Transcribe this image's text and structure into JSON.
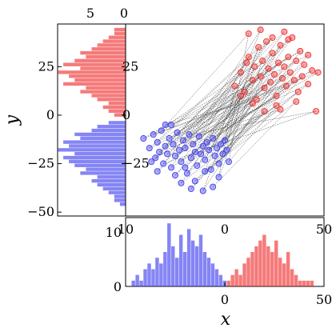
{
  "chart_data": {
    "type": "scatter",
    "xlabel": "x",
    "ylabel": "y",
    "xlim": [
      -50,
      50
    ],
    "ylim": [
      -52,
      47
    ],
    "colors": {
      "blue": "#3333ee",
      "red": "#ee2222",
      "line": "#333333"
    },
    "axes": {
      "main_yticks": [
        "25",
        "0",
        "−25"
      ],
      "main_yticks_values": [
        25,
        0,
        -25
      ],
      "main_xticks": [
        "0",
        "50"
      ],
      "main_xticks_values": [
        0,
        50
      ],
      "left_yticks": [
        "25",
        "0",
        "−25",
        "−50"
      ],
      "left_yticks_values": [
        25,
        0,
        -25,
        -50
      ],
      "left_top_ticks": [
        "5",
        "0"
      ],
      "left_top_ticks_values": [
        5,
        0
      ],
      "left_bottom_tick": "10",
      "bottom_left_tick": "10",
      "bottom_yticks": [
        "0"
      ],
      "bottom_xticks": [
        "0",
        "50"
      ],
      "bottom_xticks_values": [
        0,
        50
      ]
    },
    "series": [
      {
        "color": "blue",
        "points": [
          [
            -41,
            -12
          ],
          [
            -38,
            -17
          ],
          [
            -36,
            -10
          ],
          [
            -35,
            -22
          ],
          [
            -34,
            -14
          ],
          [
            -33,
            -19
          ],
          [
            -32,
            -8
          ],
          [
            -31,
            -25
          ],
          [
            -30,
            -16
          ],
          [
            -29,
            -20
          ],
          [
            -28,
            -12
          ],
          [
            -27,
            -27
          ],
          [
            -26,
            -15
          ],
          [
            -25,
            -21
          ],
          [
            -24,
            -9
          ],
          [
            -23,
            -18
          ],
          [
            -22,
            -24
          ],
          [
            -21,
            -13
          ],
          [
            -20,
            -17
          ],
          [
            -19,
            -30
          ],
          [
            -18,
            -10
          ],
          [
            -17,
            -22
          ],
          [
            -16,
            -15
          ],
          [
            -15,
            -19
          ],
          [
            -14,
            -26
          ],
          [
            -13,
            -11
          ],
          [
            -12,
            -20
          ],
          [
            -11,
            -16
          ],
          [
            -10,
            -23
          ],
          [
            -9,
            -14
          ],
          [
            -8,
            -18
          ],
          [
            -7,
            -28
          ],
          [
            -6,
            -12
          ],
          [
            -5,
            -21
          ],
          [
            -4,
            -17
          ],
          [
            -3,
            -25
          ],
          [
            -2,
            -15
          ],
          [
            -1,
            -20
          ],
          [
            0,
            -13
          ],
          [
            1,
            -18
          ],
          [
            2,
            -24
          ],
          [
            -37,
            -24
          ],
          [
            -30,
            -5
          ],
          [
            -25,
            -31
          ],
          [
            -20,
            -27
          ],
          [
            -15,
            -34
          ],
          [
            -10,
            -29
          ],
          [
            -6,
            -37
          ],
          [
            -3,
            -32
          ],
          [
            -11,
            -39
          ],
          [
            -22,
            -35
          ],
          [
            -17,
            -38
          ],
          [
            -27,
            -5
          ],
          [
            -34,
            -29
          ]
        ]
      },
      {
        "color": "red",
        "points": [
          [
            5,
            15
          ],
          [
            8,
            22
          ],
          [
            10,
            12
          ],
          [
            12,
            30
          ],
          [
            14,
            18
          ],
          [
            15,
            25
          ],
          [
            16,
            8
          ],
          [
            17,
            35
          ],
          [
            18,
            20
          ],
          [
            19,
            28
          ],
          [
            20,
            14
          ],
          [
            21,
            38
          ],
          [
            22,
            24
          ],
          [
            23,
            17
          ],
          [
            24,
            32
          ],
          [
            25,
            21
          ],
          [
            26,
            10
          ],
          [
            27,
            27
          ],
          [
            28,
            36
          ],
          [
            29,
            19
          ],
          [
            30,
            25
          ],
          [
            31,
            15
          ],
          [
            32,
            30
          ],
          [
            33,
            22
          ],
          [
            34,
            40
          ],
          [
            35,
            18
          ],
          [
            36,
            28
          ],
          [
            37,
            12
          ],
          [
            38,
            33
          ],
          [
            39,
            20
          ],
          [
            40,
            26
          ],
          [
            42,
            16
          ],
          [
            44,
            23
          ],
          [
            12,
            42
          ],
          [
            18,
            44
          ],
          [
            24,
            40
          ],
          [
            30,
            43
          ],
          [
            26,
            5
          ],
          [
            20,
            2
          ],
          [
            14,
            6
          ],
          [
            8,
            10
          ],
          [
            36,
            7
          ],
          [
            42,
            31
          ],
          [
            47,
            22
          ],
          [
            46,
            2
          ],
          [
            32,
            39
          ],
          [
            28,
            3
          ],
          [
            11,
            27
          ]
        ]
      }
    ],
    "histograms": {
      "y_blue_bins": [
        [
          -46,
          1
        ],
        [
          -44,
          2
        ],
        [
          -42,
          2
        ],
        [
          -40,
          3
        ],
        [
          -38,
          4
        ],
        [
          -36,
          5
        ],
        [
          -34,
          6
        ],
        [
          -32,
          5
        ],
        [
          -30,
          8
        ],
        [
          -28,
          7
        ],
        [
          -26,
          9
        ],
        [
          -24,
          10
        ],
        [
          -22,
          11
        ],
        [
          -20,
          9
        ],
        [
          -18,
          12
        ],
        [
          -16,
          10
        ],
        [
          -14,
          11
        ],
        [
          -12,
          8
        ],
        [
          -10,
          9
        ],
        [
          -8,
          6
        ],
        [
          -6,
          5
        ],
        [
          -4,
          3
        ]
      ],
      "y_red_bins": [
        [
          0,
          2
        ],
        [
          2,
          3
        ],
        [
          4,
          4
        ],
        [
          6,
          3
        ],
        [
          8,
          5
        ],
        [
          10,
          6
        ],
        [
          12,
          8
        ],
        [
          14,
          7
        ],
        [
          16,
          11
        ],
        [
          18,
          9
        ],
        [
          20,
          10
        ],
        [
          22,
          12
        ],
        [
          24,
          8
        ],
        [
          26,
          11
        ],
        [
          28,
          9
        ],
        [
          30,
          7
        ],
        [
          32,
          8
        ],
        [
          34,
          6
        ],
        [
          36,
          5
        ],
        [
          38,
          4
        ],
        [
          40,
          3
        ],
        [
          42,
          2
        ],
        [
          44,
          2
        ]
      ],
      "x_blue_bins": [
        [
          -46,
          1
        ],
        [
          -44,
          2
        ],
        [
          -42,
          1
        ],
        [
          -40,
          3
        ],
        [
          -38,
          4
        ],
        [
          -36,
          3
        ],
        [
          -34,
          5
        ],
        [
          -32,
          4
        ],
        [
          -30,
          6
        ],
        [
          -28,
          11
        ],
        [
          -26,
          7
        ],
        [
          -24,
          5
        ],
        [
          -22,
          9
        ],
        [
          -20,
          6
        ],
        [
          -18,
          10
        ],
        [
          -16,
          8
        ],
        [
          -14,
          7
        ],
        [
          -12,
          9
        ],
        [
          -10,
          6
        ],
        [
          -8,
          5
        ],
        [
          -6,
          4
        ],
        [
          -4,
          3
        ],
        [
          -2,
          2
        ],
        [
          0,
          1
        ]
      ],
      "x_red_bins": [
        [
          2,
          1
        ],
        [
          4,
          2
        ],
        [
          6,
          3
        ],
        [
          8,
          2
        ],
        [
          10,
          4
        ],
        [
          12,
          5
        ],
        [
          14,
          6
        ],
        [
          16,
          7
        ],
        [
          18,
          8
        ],
        [
          20,
          9
        ],
        [
          22,
          7
        ],
        [
          24,
          6
        ],
        [
          26,
          8
        ],
        [
          28,
          5
        ],
        [
          30,
          4
        ],
        [
          32,
          6
        ],
        [
          34,
          3
        ],
        [
          36,
          2
        ],
        [
          38,
          1
        ],
        [
          40,
          1
        ],
        [
          42,
          1
        ],
        [
          44,
          1
        ]
      ]
    }
  }
}
